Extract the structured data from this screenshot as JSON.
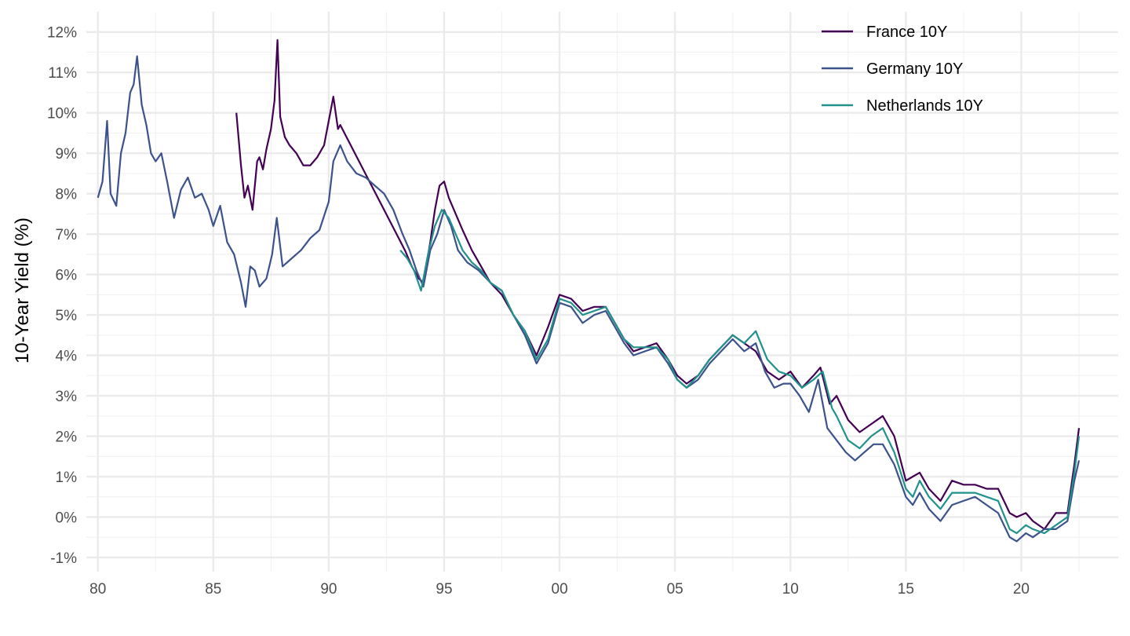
{
  "chart_data": {
    "type": "line",
    "title": "",
    "xlabel": "",
    "ylabel": "10-Year Yield (%)",
    "xlim": [
      1979.5,
      2024.2
    ],
    "ylim": [
      -1.35,
      12.5
    ],
    "grid": true,
    "legend_position": "top-right",
    "x_ticks": [
      {
        "value": 1980,
        "label": "80"
      },
      {
        "value": 1985,
        "label": "85"
      },
      {
        "value": 1990,
        "label": "90"
      },
      {
        "value": 1995,
        "label": "95"
      },
      {
        "value": 2000,
        "label": "00"
      },
      {
        "value": 2005,
        "label": "05"
      },
      {
        "value": 2010,
        "label": "10"
      },
      {
        "value": 2015,
        "label": "15"
      },
      {
        "value": 2020,
        "label": "20"
      }
    ],
    "y_ticks": [
      {
        "value": -1,
        "label": "-1%"
      },
      {
        "value": 0,
        "label": "0%"
      },
      {
        "value": 1,
        "label": "1%"
      },
      {
        "value": 2,
        "label": "2%"
      },
      {
        "value": 3,
        "label": "3%"
      },
      {
        "value": 4,
        "label": "4%"
      },
      {
        "value": 5,
        "label": "5%"
      },
      {
        "value": 6,
        "label": "6%"
      },
      {
        "value": 7,
        "label": "7%"
      },
      {
        "value": 8,
        "label": "8%"
      },
      {
        "value": 9,
        "label": "9%"
      },
      {
        "value": 10,
        "label": "10%"
      },
      {
        "value": 11,
        "label": "11%"
      },
      {
        "value": 12,
        "label": "12%"
      }
    ],
    "series": [
      {
        "name": "France 10Y",
        "color": "#440154",
        "x": [
          1986.0,
          1986.2,
          1986.35,
          1986.5,
          1986.7,
          1986.9,
          1987.0,
          1987.15,
          1987.3,
          1987.5,
          1987.65,
          1987.78,
          1987.9,
          1988.1,
          1988.3,
          1988.6,
          1988.9,
          1989.2,
          1989.5,
          1989.8,
          1990.0,
          1990.2,
          1990.4,
          1990.5,
          1993.3,
          1993.6,
          1993.9,
          1994.1,
          1994.4,
          1994.6,
          1994.8,
          1995.0,
          1995.2,
          1995.5,
          1995.8,
          1996.2,
          1996.6,
          1997.0,
          1997.5,
          1998.0,
          1998.5,
          1999.0,
          1999.5,
          2000.0,
          2000.5,
          2001.0,
          2001.5,
          2002.0,
          2002.4,
          2002.8,
          2003.2,
          2003.7,
          2004.2,
          2004.7,
          2005.1,
          2005.5,
          2006.0,
          2006.5,
          2007.0,
          2007.5,
          2008.0,
          2008.5,
          2009.0,
          2009.5,
          2010.0,
          2010.5,
          2011.0,
          2011.3,
          2011.7,
          2012.0,
          2012.5,
          2013.0,
          2013.5,
          2014.0,
          2014.5,
          2015.0,
          2015.3,
          2015.6,
          2016.0,
          2016.5,
          2017.0,
          2017.5,
          2018.0,
          2018.5,
          2019.0,
          2019.5,
          2019.8,
          2020.2,
          2020.5,
          2021.0,
          2021.5,
          2022.0,
          2022.3,
          2022.5
        ],
        "values": [
          10.0,
          8.7,
          7.9,
          8.2,
          7.6,
          8.8,
          8.9,
          8.6,
          9.1,
          9.6,
          10.3,
          11.8,
          9.9,
          9.4,
          9.2,
          9.0,
          8.7,
          8.7,
          8.9,
          9.2,
          9.8,
          10.4,
          9.6,
          9.7,
          6.6,
          6.2,
          5.9,
          5.8,
          6.8,
          7.6,
          8.2,
          8.3,
          7.9,
          7.5,
          7.1,
          6.6,
          6.2,
          5.8,
          5.5,
          5.0,
          4.6,
          4.0,
          4.7,
          5.5,
          5.4,
          5.1,
          5.2,
          5.2,
          4.8,
          4.4,
          4.1,
          4.2,
          4.3,
          3.9,
          3.5,
          3.3,
          3.5,
          3.9,
          4.2,
          4.5,
          4.3,
          4.1,
          3.6,
          3.4,
          3.6,
          3.2,
          3.5,
          3.7,
          2.8,
          3.0,
          2.4,
          2.1,
          2.3,
          2.5,
          2.0,
          0.9,
          1.0,
          1.1,
          0.7,
          0.4,
          0.9,
          0.8,
          0.8,
          0.7,
          0.7,
          0.1,
          0.0,
          0.1,
          -0.1,
          -0.3,
          0.1,
          0.1,
          1.3,
          2.2
        ]
      },
      {
        "name": "Germany 10Y",
        "color": "#3b528b",
        "x": [
          1980.0,
          1980.2,
          1980.4,
          1980.55,
          1980.8,
          1981.0,
          1981.2,
          1981.4,
          1981.55,
          1981.7,
          1981.9,
          1982.1,
          1982.3,
          1982.5,
          1982.75,
          1983.0,
          1983.3,
          1983.6,
          1983.9,
          1984.2,
          1984.5,
          1984.8,
          1985.0,
          1985.3,
          1985.6,
          1985.9,
          1986.2,
          1986.4,
          1986.6,
          1986.8,
          1987.0,
          1987.3,
          1987.55,
          1987.75,
          1988.0,
          1988.4,
          1988.8,
          1989.2,
          1989.6,
          1990.0,
          1990.2,
          1990.5,
          1990.8,
          1991.2,
          1991.6,
          1992.0,
          1992.4,
          1992.8,
          1993.2,
          1993.5,
          1993.8,
          1994.1,
          1994.4,
          1994.7,
          1995.0,
          1995.3,
          1995.6,
          1996.0,
          1996.5,
          1997.0,
          1997.5,
          1998.0,
          1998.5,
          1999.0,
          1999.5,
          2000.0,
          2000.5,
          2001.0,
          2001.5,
          2002.0,
          2002.4,
          2002.8,
          2003.2,
          2003.7,
          2004.2,
          2004.7,
          2005.1,
          2005.5,
          2006.0,
          2006.5,
          2007.0,
          2007.5,
          2008.0,
          2008.5,
          2008.9,
          2009.3,
          2009.7,
          2010.0,
          2010.4,
          2010.8,
          2011.2,
          2011.6,
          2012.0,
          2012.4,
          2012.8,
          2013.2,
          2013.6,
          2014.0,
          2014.5,
          2015.0,
          2015.3,
          2015.6,
          2016.0,
          2016.5,
          2017.0,
          2017.5,
          2018.0,
          2018.5,
          2019.0,
          2019.5,
          2019.8,
          2020.2,
          2020.5,
          2021.0,
          2021.5,
          2022.0,
          2022.3,
          2022.5
        ],
        "values": [
          7.9,
          8.3,
          9.8,
          8.0,
          7.7,
          9.0,
          9.5,
          10.5,
          10.7,
          11.4,
          10.2,
          9.7,
          9.0,
          8.8,
          9.0,
          8.3,
          7.4,
          8.1,
          8.4,
          7.9,
          8.0,
          7.6,
          7.2,
          7.7,
          6.8,
          6.5,
          5.8,
          5.2,
          6.2,
          6.1,
          5.7,
          5.9,
          6.5,
          7.4,
          6.2,
          6.4,
          6.6,
          6.9,
          7.1,
          7.8,
          8.8,
          9.2,
          8.8,
          8.5,
          8.4,
          8.2,
          8.0,
          7.6,
          7.0,
          6.6,
          6.1,
          5.7,
          6.6,
          7.0,
          7.6,
          7.2,
          6.6,
          6.3,
          6.1,
          5.8,
          5.6,
          5.0,
          4.5,
          3.8,
          4.3,
          5.3,
          5.2,
          4.8,
          5.0,
          5.1,
          4.7,
          4.3,
          4.0,
          4.1,
          4.2,
          3.8,
          3.4,
          3.2,
          3.4,
          3.8,
          4.1,
          4.4,
          4.1,
          4.3,
          3.6,
          3.2,
          3.3,
          3.3,
          3.0,
          2.6,
          3.4,
          2.2,
          1.9,
          1.6,
          1.4,
          1.6,
          1.8,
          1.8,
          1.3,
          0.5,
          0.3,
          0.6,
          0.2,
          -0.1,
          0.3,
          0.4,
          0.5,
          0.3,
          0.1,
          -0.5,
          -0.6,
          -0.4,
          -0.5,
          -0.3,
          -0.3,
          -0.1,
          0.9,
          1.4
        ]
      },
      {
        "name": "Netherlands 10Y",
        "color": "#21918c",
        "x": [
          1993.1,
          1993.4,
          1993.7,
          1994.0,
          1994.3,
          1994.6,
          1994.9,
          1995.2,
          1995.5,
          1995.8,
          1996.2,
          1996.6,
          1997.0,
          1997.5,
          1998.0,
          1998.5,
          1999.0,
          1999.5,
          2000.0,
          2000.5,
          2001.0,
          2001.5,
          2002.0,
          2002.4,
          2002.8,
          2003.2,
          2003.7,
          2004.2,
          2004.7,
          2005.1,
          2005.5,
          2006.0,
          2006.5,
          2007.0,
          2007.5,
          2008.0,
          2008.5,
          2009.0,
          2009.5,
          2010.0,
          2010.5,
          2011.0,
          2011.4,
          2011.8,
          2012.0,
          2012.5,
          2013.0,
          2013.5,
          2014.0,
          2014.5,
          2015.0,
          2015.3,
          2015.6,
          2016.0,
          2016.5,
          2017.0,
          2017.5,
          2018.0,
          2018.5,
          2019.0,
          2019.5,
          2019.8,
          2020.2,
          2020.5,
          2021.0,
          2021.5,
          2022.0,
          2022.3,
          2022.5
        ],
        "values": [
          6.6,
          6.4,
          6.1,
          5.6,
          6.5,
          7.2,
          7.6,
          7.4,
          7.0,
          6.6,
          6.3,
          6.1,
          5.8,
          5.6,
          5.0,
          4.6,
          3.9,
          4.4,
          5.4,
          5.3,
          5.0,
          5.1,
          5.2,
          4.8,
          4.4,
          4.2,
          4.2,
          4.2,
          3.9,
          3.4,
          3.2,
          3.5,
          3.9,
          4.2,
          4.5,
          4.3,
          4.6,
          3.9,
          3.6,
          3.5,
          3.2,
          3.4,
          3.6,
          2.7,
          2.5,
          1.9,
          1.7,
          2.0,
          2.2,
          1.6,
          0.7,
          0.5,
          0.9,
          0.5,
          0.2,
          0.6,
          0.6,
          0.6,
          0.5,
          0.4,
          -0.3,
          -0.4,
          -0.2,
          -0.3,
          -0.4,
          -0.2,
          0.0,
          1.1,
          2.0
        ]
      }
    ]
  }
}
